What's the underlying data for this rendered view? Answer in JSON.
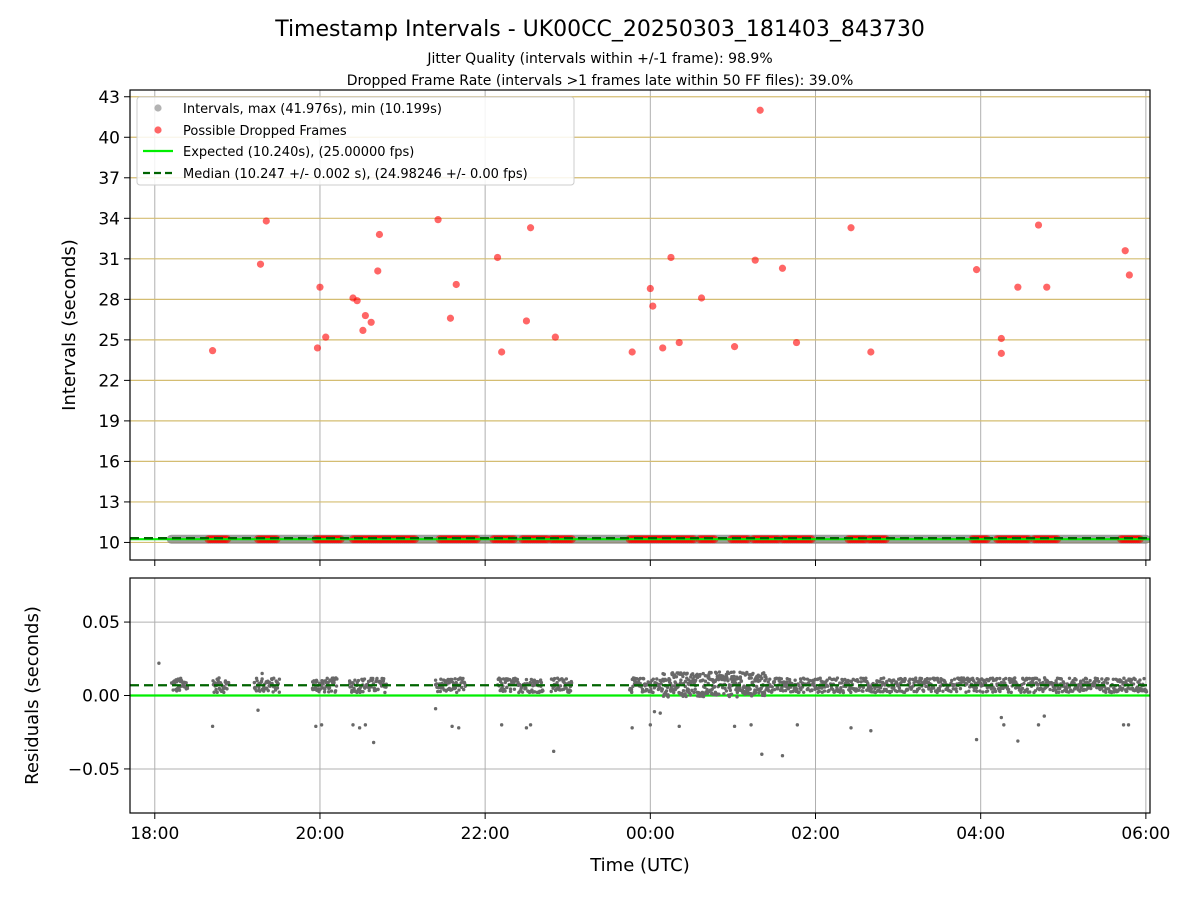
{
  "chart_data": [
    {
      "type": "scatter",
      "title": "Timestamp Intervals - UK00CC_20250303_181403_843730",
      "subtitle_lines": [
        "Jitter Quality (intervals within +/-1 frame): 98.9%",
        "Dropped Frame Rate (intervals >1 frames late within 50 FF files): 39.0%"
      ],
      "ylabel": "Intervals (seconds)",
      "xlim_hours": [
        -6.3,
        6.05
      ],
      "ylim": [
        8.7,
        43.5
      ],
      "yticks": [
        10,
        13,
        16,
        19,
        22,
        25,
        28,
        31,
        34,
        37,
        40,
        43
      ],
      "xtick_hours": [
        -6,
        -4,
        -2,
        0,
        2,
        4,
        6
      ],
      "grid": "horizontal gold lines, vertical grey lines",
      "legend_placement": "upper-left",
      "legend": [
        "Intervals, max (41.976s), min (10.199s)",
        "Possible Dropped Frames",
        "Expected (10.240s), (25.00000 fps)",
        "Median (10.247 +/- 0.002 s), (24.98246 +/- 0.00 fps)"
      ],
      "series": [
        {
          "name": "Intervals, max (41.976s), min (10.199s)",
          "color": "#808080",
          "style": "dense markers at ~10.24 s",
          "x_start_hours": -5.8,
          "x_end_hours": 6.0,
          "y": 10.24
        },
        {
          "name": "Possible Dropped Frames",
          "color": "#ff0000",
          "points": [
            [
              -5.3,
              24.2
            ],
            [
              -4.72,
              30.6
            ],
            [
              -4.65,
              33.8
            ],
            [
              -4.03,
              24.4
            ],
            [
              -4.0,
              28.9
            ],
            [
              -3.93,
              25.2
            ],
            [
              -3.6,
              28.1
            ],
            [
              -3.55,
              27.9
            ],
            [
              -3.48,
              25.7
            ],
            [
              -3.45,
              26.8
            ],
            [
              -3.38,
              26.3
            ],
            [
              -3.3,
              30.1
            ],
            [
              -3.28,
              32.8
            ],
            [
              -2.57,
              33.9
            ],
            [
              -2.42,
              26.6
            ],
            [
              -2.35,
              29.1
            ],
            [
              -1.85,
              31.1
            ],
            [
              -1.8,
              24.1
            ],
            [
              -1.5,
              26.4
            ],
            [
              -1.45,
              33.3
            ],
            [
              -1.15,
              25.2
            ],
            [
              -0.22,
              24.1
            ],
            [
              0.0,
              28.8
            ],
            [
              0.03,
              27.5
            ],
            [
              0.15,
              24.4
            ],
            [
              0.25,
              31.1
            ],
            [
              0.35,
              24.8
            ],
            [
              0.62,
              28.1
            ],
            [
              1.02,
              24.5
            ],
            [
              1.27,
              30.9
            ],
            [
              1.33,
              42.0
            ],
            [
              1.6,
              30.3
            ],
            [
              1.77,
              24.8
            ],
            [
              2.43,
              33.3
            ],
            [
              2.67,
              24.1
            ],
            [
              3.95,
              30.2
            ],
            [
              4.25,
              25.1
            ],
            [
              4.25,
              24.0
            ],
            [
              4.45,
              28.9
            ],
            [
              4.7,
              33.5
            ],
            [
              4.8,
              28.9
            ],
            [
              5.75,
              31.6
            ],
            [
              5.8,
              29.8
            ]
          ],
          "baseline_clusters_hours": [
            [
              -5.35,
              -5.1
            ],
            [
              -4.75,
              -4.5
            ],
            [
              -4.05,
              -3.75
            ],
            [
              -3.6,
              -2.85
            ],
            [
              -2.55,
              -2.1
            ],
            [
              -1.9,
              -1.65
            ],
            [
              -1.55,
              -1.25
            ],
            [
              -1.2,
              -0.95
            ],
            [
              -0.25,
              0.55
            ],
            [
              0.6,
              0.8
            ],
            [
              0.98,
              1.2
            ],
            [
              1.25,
              1.55
            ],
            [
              1.6,
              1.95
            ],
            [
              2.4,
              2.6
            ],
            [
              2.65,
              2.85
            ],
            [
              3.9,
              4.1
            ],
            [
              4.2,
              4.6
            ],
            [
              4.65,
              4.95
            ],
            [
              5.7,
              5.95
            ]
          ]
        },
        {
          "name": "Expected (10.240s), (25.00000 fps)",
          "color": "#00ee00",
          "y": 10.24
        },
        {
          "name": "Median (10.247 +/- 0.002 s), (24.98246 +/- 0.00 fps)",
          "color": "#006400",
          "y": 10.247
        }
      ]
    },
    {
      "type": "scatter",
      "ylabel": "Residuals (seconds)",
      "xlabel": "Time (UTC)",
      "xlim_hours": [
        -6.3,
        6.05
      ],
      "ylim": [
        -0.08,
        0.08
      ],
      "yticks": [
        -0.05,
        0.0,
        0.05
      ],
      "ytick_labels": [
        "−0.05",
        "0.00",
        "0.05"
      ],
      "xtick_labels": [
        "18:00",
        "20:00",
        "22:00",
        "00:00",
        "02:00",
        "04:00",
        "06:00"
      ],
      "grid": "on",
      "series": [
        {
          "name": "Expected",
          "color": "#00ee00",
          "y": 0.0
        },
        {
          "name": "Median",
          "color": "#006400",
          "y": 0.007
        },
        {
          "name": "Residuals",
          "color": "#696969",
          "band_segments_hours": [
            [
              -5.8,
              -5.6
            ],
            [
              -5.3,
              -5.1
            ],
            [
              -4.8,
              -4.5
            ],
            [
              -4.1,
              -3.8
            ],
            [
              -3.65,
              -3.2
            ],
            [
              -2.6,
              -2.25
            ],
            [
              -1.85,
              -1.55
            ],
            [
              -1.55,
              -1.3
            ],
            [
              -1.2,
              -0.95
            ],
            [
              -0.25,
              0.15
            ],
            [
              0.15,
              1.4
            ],
            [
              1.4,
              6.0
            ]
          ],
          "outliers": [
            [
              -5.95,
              0.022
            ],
            [
              -5.3,
              -0.021
            ],
            [
              -4.75,
              -0.01
            ],
            [
              -4.7,
              0.015
            ],
            [
              -4.05,
              -0.021
            ],
            [
              -3.98,
              -0.02
            ],
            [
              -3.6,
              -0.02
            ],
            [
              -3.52,
              -0.022
            ],
            [
              -3.45,
              -0.02
            ],
            [
              -3.35,
              -0.032
            ],
            [
              -2.6,
              -0.009
            ],
            [
              -2.4,
              -0.021
            ],
            [
              -2.32,
              -0.022
            ],
            [
              -1.8,
              -0.02
            ],
            [
              -1.5,
              -0.022
            ],
            [
              -1.45,
              -0.02
            ],
            [
              -1.17,
              -0.038
            ],
            [
              -0.22,
              -0.022
            ],
            [
              0.0,
              -0.02
            ],
            [
              0.05,
              -0.011
            ],
            [
              0.12,
              -0.012
            ],
            [
              0.35,
              -0.021
            ],
            [
              1.02,
              -0.021
            ],
            [
              1.22,
              -0.02
            ],
            [
              1.35,
              -0.04
            ],
            [
              1.6,
              -0.041
            ],
            [
              1.78,
              -0.02
            ],
            [
              2.43,
              -0.022
            ],
            [
              2.67,
              -0.024
            ],
            [
              3.95,
              -0.03
            ],
            [
              4.25,
              -0.015
            ],
            [
              4.28,
              -0.02
            ],
            [
              4.45,
              -0.031
            ],
            [
              4.7,
              -0.02
            ],
            [
              4.77,
              -0.014
            ],
            [
              5.73,
              -0.02
            ],
            [
              5.79,
              -0.02
            ]
          ]
        }
      ]
    }
  ]
}
